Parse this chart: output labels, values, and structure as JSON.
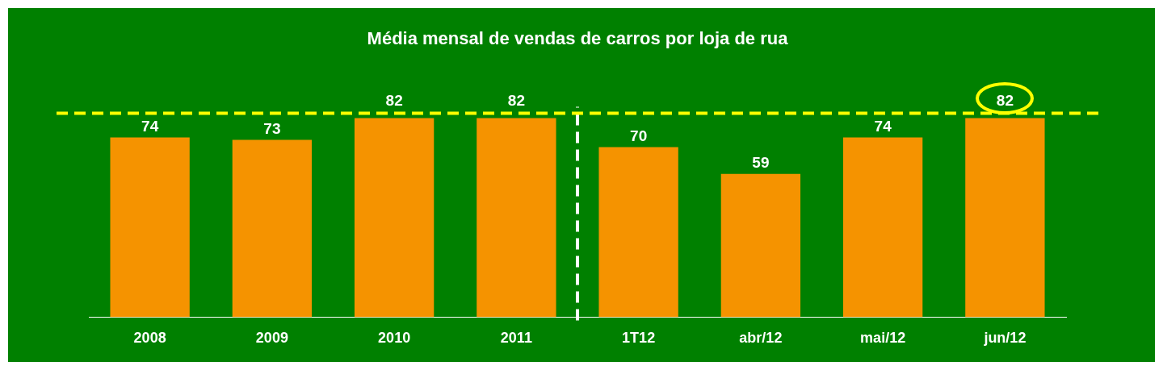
{
  "chart_data": {
    "type": "bar",
    "title": "Média mensal de vendas de carros por loja de rua",
    "categories": [
      "2008",
      "2009",
      "2010",
      "2011",
      "1T12",
      "abr/12",
      "mai/12",
      "jun/12"
    ],
    "values": [
      74,
      73,
      82,
      82,
      70,
      59,
      74,
      82
    ],
    "color": "#f59300",
    "data_labels": true,
    "tick_labels": "x",
    "grid": false,
    "legend": false,
    "ref_lines": [
      {
        "axis": "y",
        "value": 84,
        "color": "#ffff00",
        "line_style": "dashed"
      }
    ]
  }
}
